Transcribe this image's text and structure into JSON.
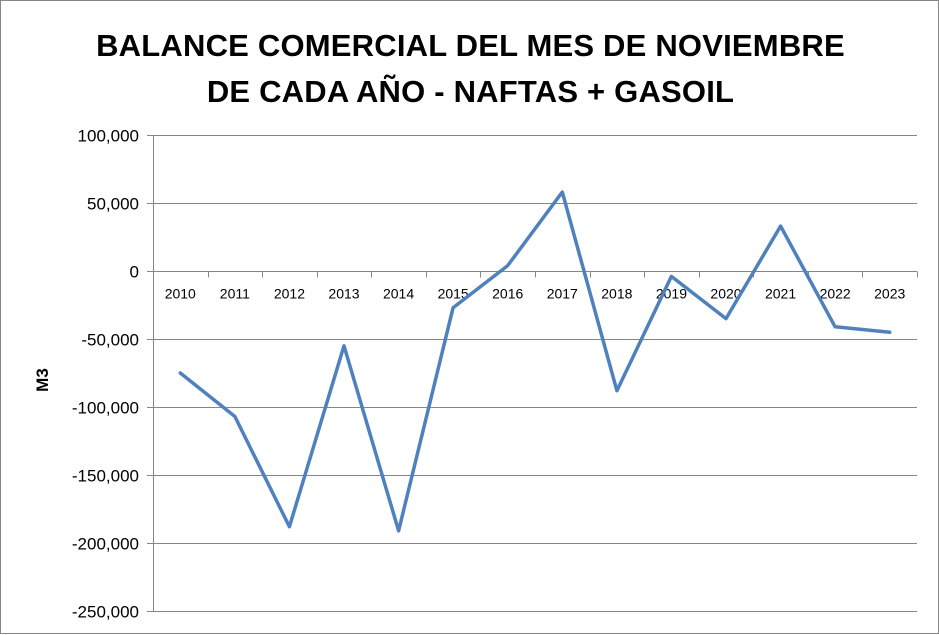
{
  "chart_data": {
    "type": "line",
    "title_lines": [
      "BALANCE COMERCIAL DEL MES DE NOVIEMBRE",
      "DE CADA AÑO - NAFTAS + GASOIL"
    ],
    "xlabel": "",
    "ylabel": "M3",
    "ylim": [
      -250000,
      100000
    ],
    "yticks": [
      100000,
      50000,
      0,
      -50000,
      -100000,
      -150000,
      -200000,
      -250000
    ],
    "ytick_labels": [
      "100,000",
      "50,000",
      "0",
      "-50,000",
      "-100,000",
      "-150,000",
      "-200,000",
      "-250,000"
    ],
    "categories": [
      "2010",
      "2011",
      "2012",
      "2013",
      "2014",
      "2015",
      "2016",
      "2017",
      "2018",
      "2019",
      "2020",
      "2021",
      "2022",
      "2023"
    ],
    "series": [
      {
        "values": [
          -75000,
          -107000,
          -188000,
          -55000,
          -191000,
          -27000,
          4000,
          58000,
          -88000,
          -4000,
          -35000,
          33000,
          -41000,
          -45000
        ],
        "color": "#4F81BD"
      }
    ],
    "grid": true,
    "legend": "none"
  }
}
